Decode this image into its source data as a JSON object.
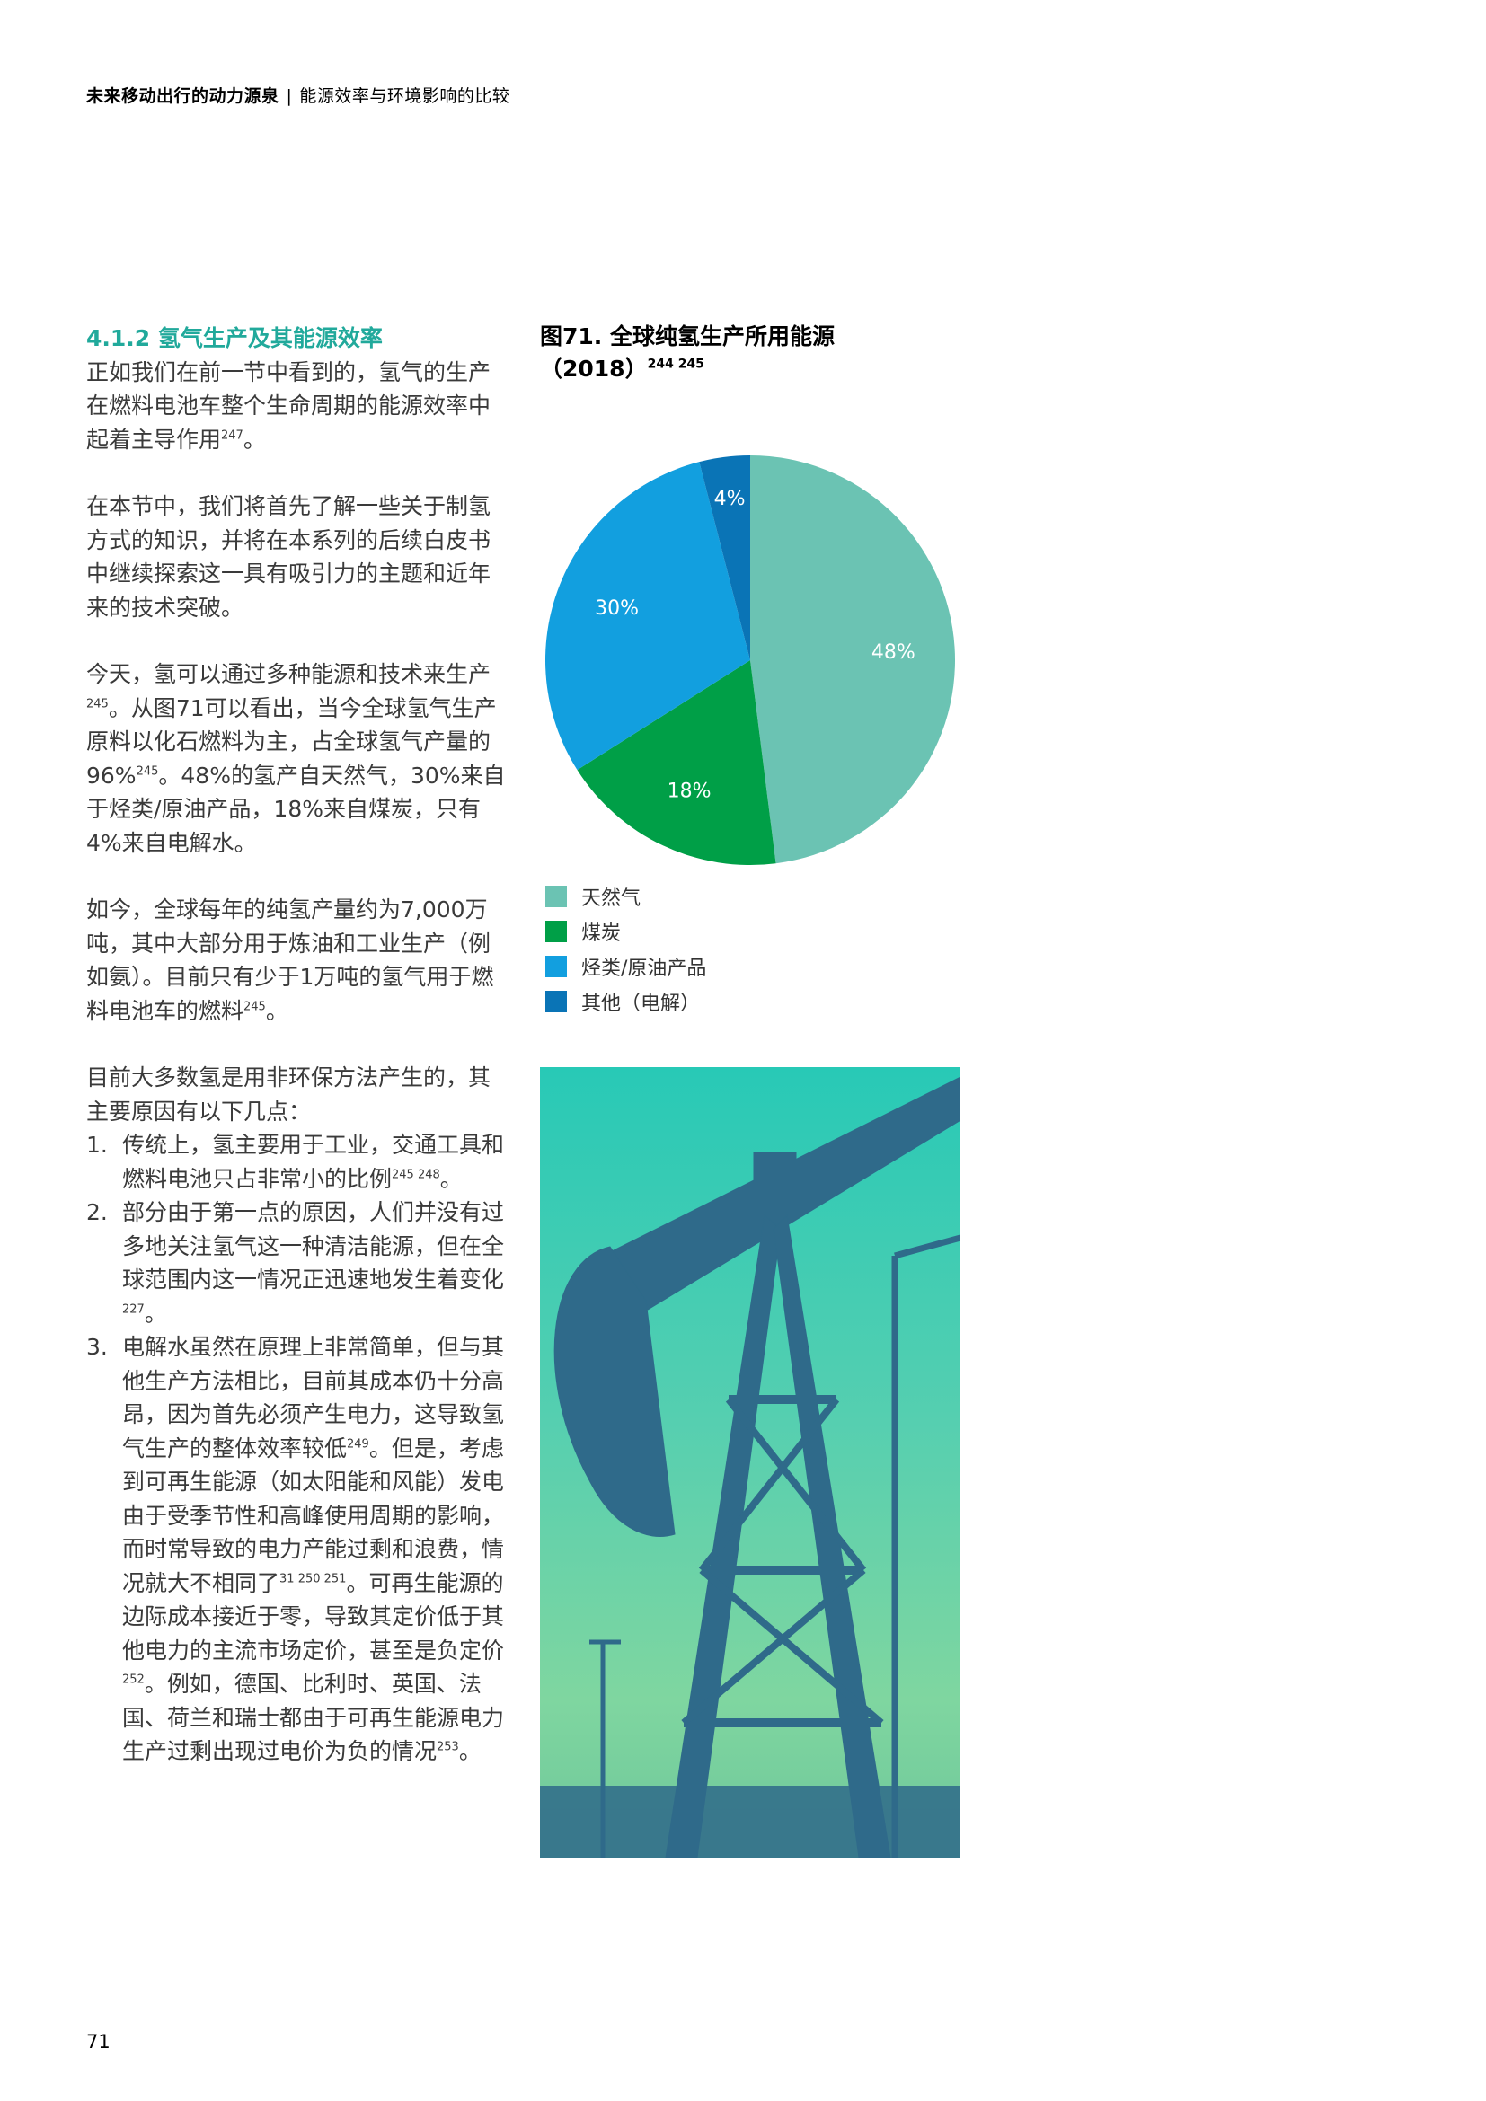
{
  "header": {
    "title": "未来移动出行的动力源泉",
    "separator": "|",
    "subtitle": "能源效率与环境影响的比较"
  },
  "section": {
    "title": "4.1.2 氢气生产及其能源效率",
    "p1": {
      "text": "正如我们在前一节中看到的，氢气的生产在燃料电池车整个生命周期的能源效率中起着主导作用",
      "ref": "247",
      "end": "。"
    },
    "p2": {
      "text": "在本节中，我们将首先了解一些关于制氢方式的知识，并将在本系列的后续白皮书中继续探索这一具有吸引力的主题和近年来的技术突破。"
    },
    "p3": {
      "a": "今天，氢可以通过多种能源和技术来生产",
      "ref1": "245",
      "b": "。从图71可以看出，当今全球氢气生产原料以化石燃料为主，占全球氢气产量的96%",
      "ref2": "245",
      "c": "。48%的氢产自天然气，30%来自于烃类/原油产品，18%来自煤炭，只有4%来自电解水。"
    },
    "p4": {
      "text": "如今，全球每年的纯氢产量约为7,000万吨，其中大部分用于炼油和工业生产（例如氨）。目前只有少于1万吨的氢气用于燃料电池车的燃料",
      "ref": "245",
      "end": "。"
    },
    "p5": {
      "intro": "目前大多数氢是用非环保方法产生的，其主要原因有以下几点："
    },
    "list": [
      {
        "num": "1.",
        "text": "传统上，氢主要用于工业，交通工具和燃料电池只占非常小的比例",
        "ref": "245 248",
        "end": "。"
      },
      {
        "num": "2.",
        "text": "部分由于第一点的原因，人们并没有过多地关注氢气这一种清洁能源，但在全球范围内这一情况正迅速地发生着变化",
        "ref": "227",
        "end": "。"
      },
      {
        "num": "3.",
        "a": "电解水虽然在原理上非常简单，但与其他生产方法相比，目前其成本仍十分高昂，因为首先必须产生电力，这导致氢气生产的整体效率较低",
        "ref1": "249",
        "b": "。但是，考虑到可再生能源（如太阳能和风能）发电由于受季节性和高峰使用周期的影响，而时常导致的电力产能过剩和浪费，情况就大不相同了",
        "ref2": "31 250 251",
        "c": "。可再生能源的边际成本接近于零，导致其定价低于其他电力的主流市场定价，甚至是负定价",
        "ref3": "252",
        "d": "。例如，德国、比利时、英国、法国、荷兰和瑞士都由于可再生能源电力生产过剩出现过电价为负的情况",
        "ref4": "253",
        "e": "。"
      }
    ]
  },
  "figure": {
    "title": "图71. 全球纯氢生产所用能源",
    "year": "（2018）",
    "refs": "244 245"
  },
  "chart_data": {
    "type": "pie",
    "title": "图71. 全球纯氢生产所用能源（2018）",
    "categories": [
      "天然气",
      "煤炭",
      "烃类/原油产品",
      "其他（电解）"
    ],
    "values": [
      48,
      18,
      30,
      4
    ],
    "labels": [
      "48%",
      "18%",
      "30%",
      "4%"
    ],
    "colors": [
      "#6bc3b3",
      "#009f47",
      "#129fdf",
      "#0a74b6"
    ],
    "legend_position": "bottom"
  },
  "photo": {
    "description_icon": "oil-pump-silhouette"
  },
  "page_number": "71"
}
